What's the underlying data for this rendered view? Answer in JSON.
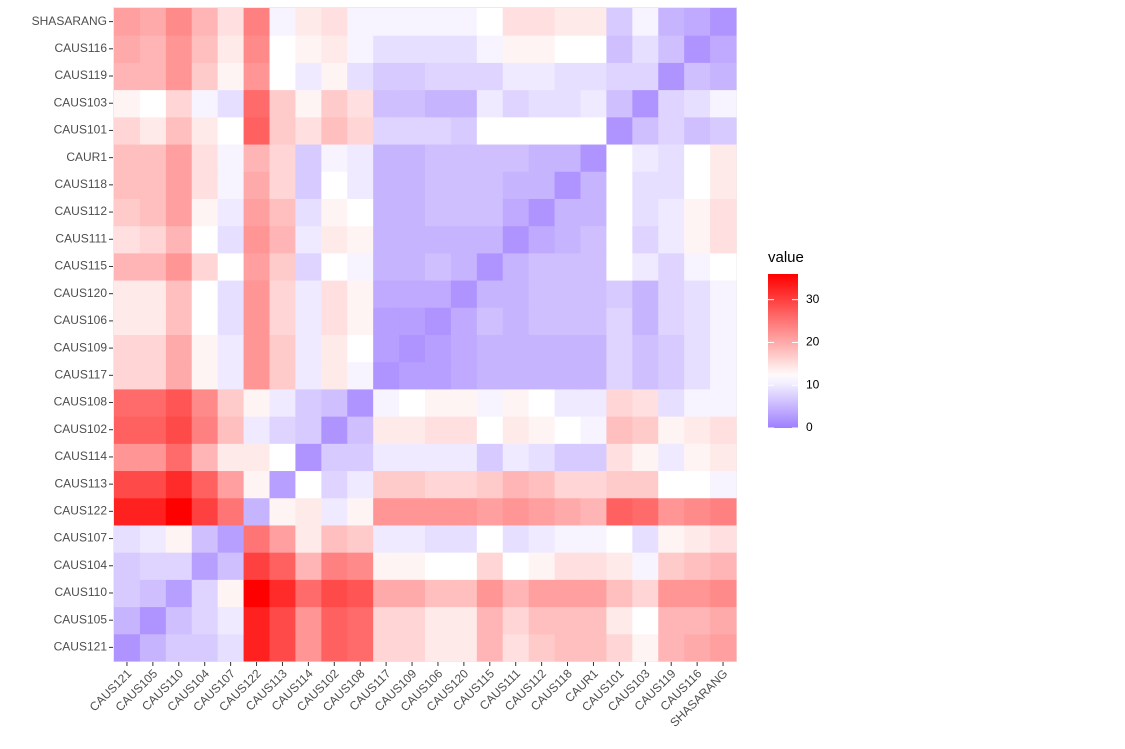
{
  "chart_data": {
    "type": "heatmap",
    "x": [
      "CAUS121",
      "CAUS105",
      "CAUS110",
      "CAUS104",
      "CAUS107",
      "CAUS122",
      "CAUS113",
      "CAUS114",
      "CAUS102",
      "CAUS108",
      "CAUS117",
      "CAUS109",
      "CAUS106",
      "CAUS120",
      "CAUS115",
      "CAUS111",
      "CAUS112",
      "CAUS118",
      "CAUR1",
      "CAUS101",
      "CAUS103",
      "CAUS119",
      "CAUS116",
      "SHASARANG"
    ],
    "y": [
      "CAUS121",
      "CAUS105",
      "CAUS110",
      "CAUS104",
      "CAUS107",
      "CAUS122",
      "CAUS113",
      "CAUS114",
      "CAUS102",
      "CAUS108",
      "CAUS117",
      "CAUS109",
      "CAUS106",
      "CAUS120",
      "CAUS115",
      "CAUS111",
      "CAUS112",
      "CAUS118",
      "CAUR1",
      "CAUS101",
      "CAUS103",
      "CAUS119",
      "CAUS116",
      "SHASARANG"
    ],
    "values": [
      [
        2,
        5,
        7,
        7,
        9,
        33,
        29,
        22,
        27,
        26,
        16,
        16,
        14,
        14,
        19,
        15,
        17,
        18,
        18,
        16,
        13,
        19,
        20,
        21
      ],
      [
        5,
        2,
        6,
        8,
        10,
        33,
        29,
        22,
        27,
        26,
        16,
        16,
        14,
        14,
        19,
        16,
        18,
        18,
        18,
        14,
        12,
        19,
        19,
        20
      ],
      [
        7,
        6,
        3,
        8,
        13,
        36,
        32,
        26,
        29,
        28,
        20,
        20,
        18,
        18,
        22,
        19,
        21,
        21,
        21,
        18,
        16,
        22,
        22,
        23
      ],
      [
        7,
        8,
        8,
        3,
        6,
        30,
        27,
        19,
        24,
        23,
        13,
        13,
        12,
        12,
        16,
        12,
        13,
        15,
        15,
        14,
        11,
        17,
        18,
        19
      ],
      [
        9,
        10,
        13,
        6,
        3,
        25,
        21,
        14,
        18,
        17,
        10,
        10,
        9,
        9,
        12,
        9,
        10,
        11,
        11,
        12,
        9,
        13,
        14,
        15
      ],
      [
        33,
        33,
        36,
        30,
        25,
        5,
        13,
        14,
        10,
        13,
        22,
        22,
        22,
        22,
        21,
        22,
        21,
        20,
        19,
        27,
        26,
        22,
        23,
        24
      ],
      [
        29,
        29,
        32,
        27,
        21,
        13,
        3,
        12,
        8,
        10,
        17,
        17,
        16,
        16,
        17,
        19,
        18,
        16,
        16,
        17,
        17,
        12,
        12,
        11
      ],
      [
        22,
        22,
        26,
        19,
        14,
        14,
        12,
        2,
        7,
        7,
        10,
        10,
        10,
        10,
        7,
        10,
        9,
        7,
        7,
        15,
        13,
        10,
        13,
        14
      ],
      [
        27,
        27,
        29,
        24,
        18,
        10,
        8,
        7,
        2,
        6,
        14,
        14,
        15,
        15,
        12,
        14,
        13,
        12,
        11,
        18,
        17,
        13,
        14,
        15
      ],
      [
        26,
        26,
        28,
        23,
        17,
        13,
        10,
        7,
        6,
        2,
        11,
        12,
        13,
        13,
        11,
        13,
        12,
        10,
        10,
        16,
        15,
        9,
        11,
        11
      ],
      [
        16,
        16,
        20,
        13,
        10,
        22,
        17,
        10,
        14,
        11,
        2,
        3,
        3,
        4,
        5,
        5,
        5,
        5,
        5,
        8,
        6,
        7,
        9,
        11
      ],
      [
        16,
        16,
        20,
        13,
        10,
        22,
        17,
        10,
        14,
        12,
        3,
        2,
        3,
        4,
        5,
        5,
        5,
        5,
        5,
        8,
        6,
        7,
        9,
        11
      ],
      [
        14,
        14,
        18,
        12,
        9,
        22,
        16,
        10,
        15,
        13,
        3,
        3,
        2,
        4,
        6,
        5,
        6,
        6,
        6,
        8,
        5,
        8,
        9,
        11
      ],
      [
        14,
        14,
        18,
        12,
        9,
        22,
        16,
        10,
        15,
        13,
        4,
        4,
        4,
        2,
        5,
        5,
        6,
        6,
        6,
        7,
        5,
        8,
        9,
        11
      ],
      [
        19,
        19,
        22,
        16,
        12,
        21,
        17,
        8,
        12,
        11,
        5,
        5,
        6,
        5,
        2,
        5,
        6,
        6,
        6,
        12,
        10,
        8,
        11,
        12
      ],
      [
        15,
        16,
        19,
        12,
        9,
        22,
        19,
        10,
        14,
        13,
        5,
        5,
        5,
        5,
        5,
        2,
        4,
        5,
        6,
        12,
        8,
        10,
        13,
        15
      ],
      [
        17,
        18,
        21,
        13,
        10,
        21,
        18,
        9,
        13,
        12,
        5,
        5,
        6,
        6,
        6,
        4,
        2,
        5,
        5,
        12,
        9,
        10,
        13,
        15
      ],
      [
        18,
        18,
        21,
        15,
        11,
        20,
        16,
        7,
        12,
        10,
        5,
        5,
        6,
        6,
        6,
        5,
        5,
        2,
        5,
        12,
        9,
        9,
        12,
        14
      ],
      [
        18,
        18,
        21,
        15,
        11,
        19,
        16,
        7,
        11,
        10,
        5,
        5,
        6,
        6,
        6,
        6,
        5,
        5,
        2,
        12,
        10,
        9,
        12,
        14
      ],
      [
        16,
        14,
        18,
        14,
        12,
        27,
        17,
        15,
        18,
        16,
        8,
        8,
        8,
        7,
        12,
        12,
        12,
        12,
        12,
        2,
        6,
        8,
        6,
        7
      ],
      [
        13,
        12,
        16,
        11,
        9,
        26,
        17,
        13,
        17,
        15,
        6,
        6,
        5,
        5,
        10,
        8,
        9,
        9,
        10,
        6,
        2,
        8,
        9,
        11
      ],
      [
        19,
        19,
        22,
        17,
        13,
        22,
        12,
        10,
        13,
        9,
        7,
        7,
        8,
        8,
        8,
        10,
        10,
        9,
        9,
        8,
        8,
        2,
        6,
        5
      ],
      [
        20,
        19,
        22,
        18,
        14,
        23,
        12,
        13,
        14,
        11,
        9,
        9,
        9,
        9,
        11,
        13,
        13,
        12,
        12,
        6,
        9,
        6,
        2,
        4
      ],
      [
        21,
        20,
        23,
        19,
        15,
        24,
        11,
        14,
        15,
        11,
        11,
        11,
        11,
        11,
        12,
        15,
        15,
        14,
        14,
        7,
        11,
        5,
        4,
        2
      ]
    ],
    "legend_title": "value",
    "clim": [
      0,
      36
    ],
    "cticks": [
      0,
      10,
      20,
      30
    ],
    "color_scale": {
      "low": "#9f7fff",
      "mid": "#ffffff",
      "high": "#ff0000",
      "midpoint": 12
    }
  }
}
